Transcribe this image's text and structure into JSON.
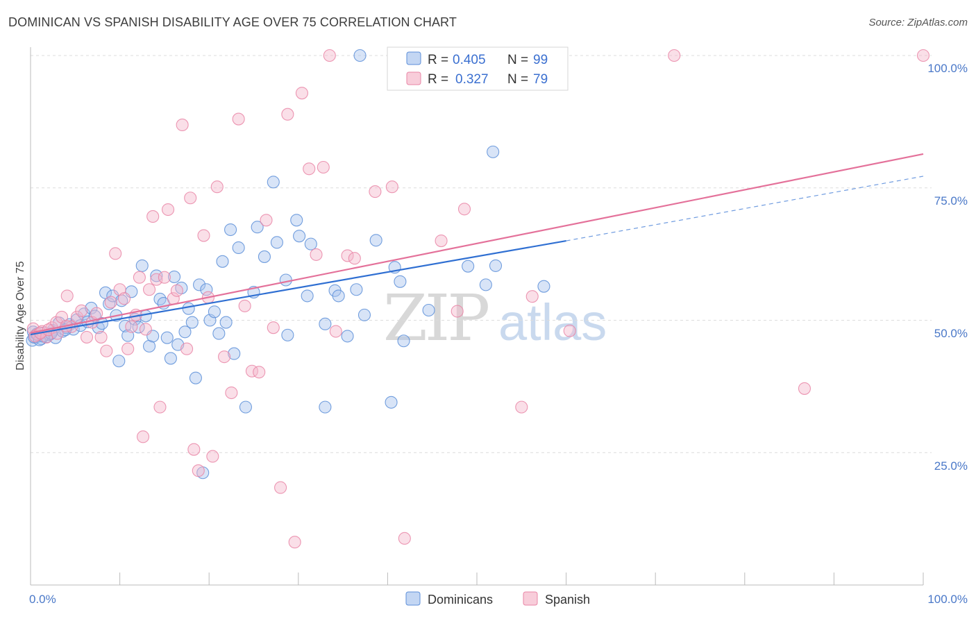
{
  "header": {
    "title": "DOMINICAN VS SPANISH DISABILITY AGE OVER 75 CORRELATION CHART",
    "source": "Source: ZipAtlas.com"
  },
  "legend_top": {
    "rows": [
      {
        "r_label": "R =",
        "r_value": "0.405",
        "n_label": "N =",
        "n_value": "99"
      },
      {
        "r_label": "R =",
        "r_value": "0.327",
        "n_label": "N =",
        "n_value": "79"
      }
    ]
  },
  "legend_bottom": {
    "items": [
      "Dominicans",
      "Spanish"
    ]
  },
  "watermark": {
    "zip": "ZIP",
    "atlas": "atlas"
  },
  "colors": {
    "dominicans_fill": "#a9c4ee",
    "dominicans_stroke": "#5b8ed8",
    "dominicans_line": "#2f6fd2",
    "spanish_fill": "#f5b8cb",
    "spanish_stroke": "#e985a6",
    "spanish_line": "#e4719a",
    "tick_label": "#4a78c8"
  },
  "chart_data": {
    "type": "scatter",
    "title": "DOMINICAN VS SPANISH DISABILITY AGE OVER 75 CORRELATION CHART",
    "xlabel": "",
    "ylabel": "Disability Age Over 75",
    "xlim": [
      0,
      100
    ],
    "ylim": [
      0,
      100
    ],
    "x_tick_labels": [
      "0.0%",
      "100.0%"
    ],
    "y_tick_labels": [
      "25.0%",
      "50.0%",
      "75.0%",
      "100.0%"
    ],
    "y_ticks": [
      25,
      50,
      75,
      100
    ],
    "grid": true,
    "legend_position": "top-center",
    "series": [
      {
        "name": "Dominicans",
        "R": 0.405,
        "N": 99,
        "trend": {
          "x0": 0,
          "y0": 47.3,
          "x1": 60,
          "y1": 65.0,
          "dashed_to_x": 100,
          "dashed_to_y": 77.2
        },
        "points": [
          [
            0.3,
            47.8
          ],
          [
            0.6,
            46.8
          ],
          [
            0.9,
            47.2
          ],
          [
            1.2,
            46.5
          ],
          [
            1.5,
            47.6
          ],
          [
            1.8,
            46.9
          ],
          [
            2.1,
            47.3
          ],
          [
            2.5,
            48.1
          ],
          [
            2.8,
            46.7
          ],
          [
            3.2,
            49.5
          ],
          [
            3.6,
            47.9
          ],
          [
            4.0,
            48.6
          ],
          [
            4.4,
            49.2
          ],
          [
            4.8,
            48.3
          ],
          [
            5.2,
            50.1
          ],
          [
            5.6,
            49.0
          ],
          [
            6.0,
            51.2
          ],
          [
            6.4,
            49.7
          ],
          [
            6.8,
            52.3
          ],
          [
            7.2,
            50.8
          ],
          [
            7.6,
            48.6
          ],
          [
            8.0,
            49.4
          ],
          [
            8.4,
            55.2
          ],
          [
            8.8,
            53.1
          ],
          [
            9.2,
            54.6
          ],
          [
            9.6,
            50.9
          ],
          [
            9.9,
            42.3
          ],
          [
            10.2,
            53.7
          ],
          [
            10.6,
            48.9
          ],
          [
            10.9,
            47.1
          ],
          [
            11.3,
            55.4
          ],
          [
            11.7,
            50.2
          ],
          [
            12.1,
            48.7
          ],
          [
            12.5,
            60.3
          ],
          [
            12.9,
            50.8
          ],
          [
            13.3,
            45.1
          ],
          [
            13.7,
            47.0
          ],
          [
            14.1,
            58.4
          ],
          [
            14.5,
            54.0
          ],
          [
            14.9,
            53.2
          ],
          [
            15.3,
            46.7
          ],
          [
            15.7,
            42.8
          ],
          [
            16.1,
            58.2
          ],
          [
            16.5,
            45.4
          ],
          [
            16.9,
            56.1
          ],
          [
            17.3,
            47.8
          ],
          [
            17.7,
            52.2
          ],
          [
            18.1,
            49.6
          ],
          [
            18.5,
            39.1
          ],
          [
            18.9,
            56.7
          ],
          [
            19.3,
            21.2
          ],
          [
            19.7,
            55.8
          ],
          [
            20.1,
            50.0
          ],
          [
            20.6,
            51.6
          ],
          [
            21.1,
            47.5
          ],
          [
            21.5,
            61.1
          ],
          [
            21.9,
            49.6
          ],
          [
            22.4,
            67.1
          ],
          [
            22.8,
            43.7
          ],
          [
            23.3,
            63.7
          ],
          [
            24.1,
            33.6
          ],
          [
            25.0,
            55.3
          ],
          [
            25.4,
            67.6
          ],
          [
            26.2,
            62.0
          ],
          [
            27.2,
            76.1
          ],
          [
            27.6,
            64.7
          ],
          [
            28.6,
            57.6
          ],
          [
            28.8,
            47.2
          ],
          [
            29.8,
            68.9
          ],
          [
            30.1,
            65.9
          ],
          [
            31.0,
            54.6
          ],
          [
            31.4,
            64.4
          ],
          [
            33.0,
            49.3
          ],
          [
            33.0,
            33.6
          ],
          [
            34.1,
            55.6
          ],
          [
            34.5,
            54.6
          ],
          [
            35.5,
            47.0
          ],
          [
            36.5,
            55.8
          ],
          [
            36.9,
            100.0
          ],
          [
            37.4,
            51.0
          ],
          [
            38.7,
            65.1
          ],
          [
            40.4,
            34.5
          ],
          [
            40.8,
            60.0
          ],
          [
            41.4,
            57.3
          ],
          [
            41.8,
            46.1
          ],
          [
            44.6,
            51.9
          ],
          [
            45.0,
            100.0
          ],
          [
            49.0,
            60.2
          ],
          [
            51.0,
            56.7
          ],
          [
            51.8,
            81.8
          ],
          [
            52.1,
            60.3
          ],
          [
            57.5,
            56.4
          ],
          [
            0.2,
            46.2
          ],
          [
            0.4,
            46.8
          ],
          [
            0.7,
            47.4
          ],
          [
            1.0,
            46.3
          ],
          [
            1.4,
            47.0
          ],
          [
            2.3,
            47.5
          ],
          [
            3.9,
            48.2
          ]
        ]
      },
      {
        "name": "Spanish",
        "R": 0.327,
        "N": 79,
        "trend": {
          "x0": 0,
          "y0": 47.6,
          "x1": 100,
          "y1": 81.4
        },
        "points": [
          [
            0.3,
            48.4
          ],
          [
            0.8,
            47.3
          ],
          [
            1.3,
            47.9
          ],
          [
            1.8,
            46.8
          ],
          [
            2.4,
            48.6
          ],
          [
            2.9,
            49.6
          ],
          [
            3.5,
            50.6
          ],
          [
            4.1,
            54.6
          ],
          [
            4.6,
            48.8
          ],
          [
            5.2,
            50.6
          ],
          [
            5.7,
            51.8
          ],
          [
            6.3,
            46.8
          ],
          [
            6.9,
            49.6
          ],
          [
            7.4,
            51.3
          ],
          [
            7.9,
            46.8
          ],
          [
            8.5,
            44.2
          ],
          [
            9.0,
            53.4
          ],
          [
            9.5,
            62.6
          ],
          [
            10.0,
            55.8
          ],
          [
            10.5,
            54.1
          ],
          [
            10.9,
            44.6
          ],
          [
            11.3,
            48.8
          ],
          [
            11.8,
            51.0
          ],
          [
            12.2,
            58.1
          ],
          [
            12.6,
            28.0
          ],
          [
            12.9,
            48.3
          ],
          [
            13.3,
            55.8
          ],
          [
            13.7,
            69.6
          ],
          [
            14.1,
            57.7
          ],
          [
            14.5,
            33.6
          ],
          [
            15.0,
            58.1
          ],
          [
            15.4,
            70.9
          ],
          [
            16.0,
            54.1
          ],
          [
            16.4,
            55.6
          ],
          [
            17.0,
            86.9
          ],
          [
            17.5,
            44.6
          ],
          [
            17.9,
            73.1
          ],
          [
            18.3,
            25.6
          ],
          [
            18.8,
            21.6
          ],
          [
            19.4,
            66.0
          ],
          [
            19.9,
            54.3
          ],
          [
            20.4,
            24.3
          ],
          [
            20.9,
            75.2
          ],
          [
            21.7,
            43.1
          ],
          [
            22.5,
            36.3
          ],
          [
            23.3,
            88.0
          ],
          [
            24.0,
            52.7
          ],
          [
            24.8,
            40.4
          ],
          [
            25.6,
            40.2
          ],
          [
            26.4,
            68.9
          ],
          [
            27.2,
            48.6
          ],
          [
            28.0,
            18.4
          ],
          [
            28.8,
            88.9
          ],
          [
            29.6,
            8.1
          ],
          [
            30.4,
            92.9
          ],
          [
            31.2,
            78.6
          ],
          [
            32.0,
            62.4
          ],
          [
            32.8,
            78.9
          ],
          [
            33.5,
            100.0
          ],
          [
            34.2,
            47.9
          ],
          [
            35.5,
            62.2
          ],
          [
            36.3,
            61.7
          ],
          [
            38.6,
            74.3
          ],
          [
            40.5,
            75.2
          ],
          [
            41.9,
            8.8
          ],
          [
            46.0,
            65.0
          ],
          [
            47.8,
            51.7
          ],
          [
            48.6,
            71.0
          ],
          [
            55.0,
            33.6
          ],
          [
            56.2,
            54.5
          ],
          [
            60.4,
            48.0
          ],
          [
            72.1,
            100.0
          ],
          [
            86.7,
            37.1
          ],
          [
            100.0,
            100.0
          ],
          [
            0.5,
            47.0
          ],
          [
            1.1,
            47.6
          ],
          [
            2.0,
            48.2
          ],
          [
            3.0,
            47.5
          ],
          [
            4.0,
            48.9
          ]
        ]
      }
    ]
  }
}
